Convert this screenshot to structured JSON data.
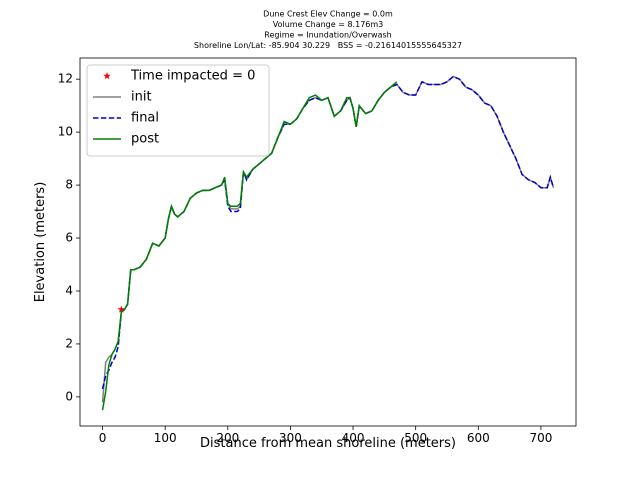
{
  "chart_data": {
    "type": "line",
    "title": [
      "Dune Crest Elev Change = 0.0m",
      "Volume Change = 8.176m3",
      "Regime = Inundation/Overwash",
      "Shoreline Lon/Lat: -85.904 30.229   BSS = -0.21614015555645327"
    ],
    "x_label": "Distance from mean shoreline (meters)",
    "y_label": "Elevation (meters)",
    "xlim": [
      -36,
      756
    ],
    "ylim": [
      -1.1,
      12.8
    ],
    "xticks": [
      0,
      100,
      200,
      300,
      400,
      500,
      600,
      700
    ],
    "yticks": [
      0,
      2,
      4,
      6,
      8,
      10,
      12
    ],
    "legend": "upper left",
    "series": [
      {
        "name": "Time impacted = 0",
        "color": "#ff0000",
        "linestyle": "none",
        "marker": "star",
        "x": [
          30
        ],
        "values": [
          3.3
        ]
      },
      {
        "name": "init",
        "color": "#808080",
        "linestyle": "solid",
        "x": [
          0,
          5,
          10,
          15,
          20,
          25,
          30,
          35,
          40,
          45,
          50,
          60,
          70,
          80,
          90,
          100,
          105,
          110,
          115,
          120,
          130,
          140,
          150,
          160,
          170,
          180,
          190,
          195,
          200,
          205,
          210,
          215,
          220,
          225,
          230,
          240,
          250,
          260,
          270,
          280,
          290,
          300,
          310,
          320,
          330,
          340,
          350,
          360,
          370,
          380,
          390,
          395,
          400,
          405,
          410,
          420,
          430,
          440,
          450,
          460,
          470,
          480,
          490,
          500,
          510,
          520,
          530,
          540,
          550,
          560,
          570,
          580,
          590,
          600,
          610,
          620,
          630,
          640,
          650,
          660,
          670,
          680,
          690,
          700,
          710,
          715,
          720
        ],
        "values": [
          -0.2,
          1.3,
          1.5,
          1.6,
          1.8,
          2.1,
          3.2,
          3.3,
          3.5,
          4.8,
          4.8,
          4.9,
          5.2,
          5.8,
          5.7,
          6.0,
          6.7,
          7.2,
          6.9,
          6.8,
          7.0,
          7.5,
          7.7,
          7.8,
          7.8,
          7.9,
          8.0,
          8.2,
          7.3,
          7.1,
          7.1,
          7.1,
          7.2,
          8.5,
          8.2,
          8.6,
          8.8,
          9.0,
          9.2,
          9.8,
          10.3,
          10.3,
          10.5,
          10.9,
          11.2,
          11.3,
          11.2,
          11.3,
          10.6,
          10.8,
          11.2,
          11.3,
          10.9,
          10.2,
          11.0,
          10.7,
          10.8,
          11.2,
          11.5,
          11.7,
          11.8,
          11.5,
          11.4,
          11.4,
          11.9,
          11.8,
          11.8,
          11.8,
          11.9,
          12.1,
          12.0,
          11.7,
          11.6,
          11.4,
          11.1,
          11.0,
          10.6,
          10.0,
          9.5,
          9.0,
          8.4,
          8.2,
          8.1,
          7.9,
          7.9,
          8.3,
          7.9
        ]
      },
      {
        "name": "final",
        "color": "#0000cc",
        "linestyle": "dashed",
        "x": [
          0,
          5,
          10,
          15,
          20,
          25,
          30,
          35,
          40,
          45,
          50,
          60,
          70,
          80,
          90,
          100,
          105,
          110,
          115,
          120,
          130,
          140,
          150,
          160,
          170,
          180,
          190,
          195,
          200,
          205,
          210,
          215,
          220,
          225,
          230,
          240,
          250,
          260,
          270,
          280,
          290,
          300,
          310,
          320,
          330,
          340,
          350,
          360,
          370,
          380,
          390,
          395,
          400,
          405,
          410,
          420,
          430,
          440,
          450,
          460,
          470,
          480,
          490,
          500,
          510,
          520,
          530,
          540,
          550,
          560,
          570,
          580,
          590,
          600,
          610,
          620,
          630,
          640,
          650,
          660,
          670,
          680,
          690,
          700,
          710,
          715,
          720
        ],
        "values": [
          0.3,
          0.8,
          1.0,
          1.3,
          1.5,
          1.9,
          3.2,
          3.3,
          3.5,
          4.8,
          4.8,
          4.9,
          5.2,
          5.8,
          5.7,
          6.0,
          6.7,
          7.2,
          6.9,
          6.8,
          7.0,
          7.5,
          7.7,
          7.8,
          7.8,
          7.9,
          8.0,
          8.2,
          7.2,
          7.0,
          7.0,
          7.0,
          7.1,
          8.5,
          8.2,
          8.6,
          8.8,
          9.0,
          9.2,
          9.8,
          10.3,
          10.3,
          10.5,
          10.9,
          11.2,
          11.3,
          11.2,
          11.3,
          10.6,
          10.8,
          11.2,
          11.3,
          10.9,
          10.2,
          11.0,
          10.7,
          10.8,
          11.2,
          11.5,
          11.7,
          11.8,
          11.5,
          11.4,
          11.4,
          11.9,
          11.8,
          11.8,
          11.8,
          11.9,
          12.1,
          12.0,
          11.7,
          11.6,
          11.4,
          11.1,
          11.0,
          10.6,
          10.0,
          9.5,
          9.0,
          8.4,
          8.2,
          8.1,
          7.9,
          7.9,
          8.3,
          7.9
        ]
      },
      {
        "name": "post",
        "color": "#008000",
        "linestyle": "solid",
        "x": [
          0,
          5,
          10,
          15,
          20,
          25,
          30,
          35,
          40,
          45,
          50,
          60,
          70,
          80,
          90,
          100,
          105,
          110,
          115,
          120,
          130,
          140,
          150,
          160,
          170,
          180,
          190,
          195,
          200,
          205,
          210,
          215,
          220,
          225,
          230,
          240,
          250,
          260,
          270,
          280,
          290,
          300,
          310,
          320,
          330,
          340,
          350,
          360,
          370,
          380,
          390,
          395,
          400,
          405,
          410,
          420,
          430,
          440,
          450,
          460,
          470
        ],
        "values": [
          -0.5,
          0.2,
          1.2,
          1.6,
          1.8,
          2.1,
          3.2,
          3.3,
          3.5,
          4.8,
          4.8,
          4.9,
          5.2,
          5.8,
          5.7,
          6.0,
          6.7,
          7.2,
          6.9,
          6.8,
          7.0,
          7.5,
          7.7,
          7.8,
          7.8,
          7.9,
          8.0,
          8.3,
          7.3,
          7.2,
          7.2,
          7.2,
          7.3,
          8.5,
          8.3,
          8.6,
          8.8,
          9.0,
          9.2,
          9.8,
          10.4,
          10.3,
          10.5,
          10.9,
          11.3,
          11.4,
          11.2,
          11.3,
          10.6,
          10.8,
          11.3,
          11.3,
          10.9,
          10.2,
          11.0,
          10.7,
          10.8,
          11.2,
          11.5,
          11.7,
          11.9
        ]
      }
    ]
  }
}
